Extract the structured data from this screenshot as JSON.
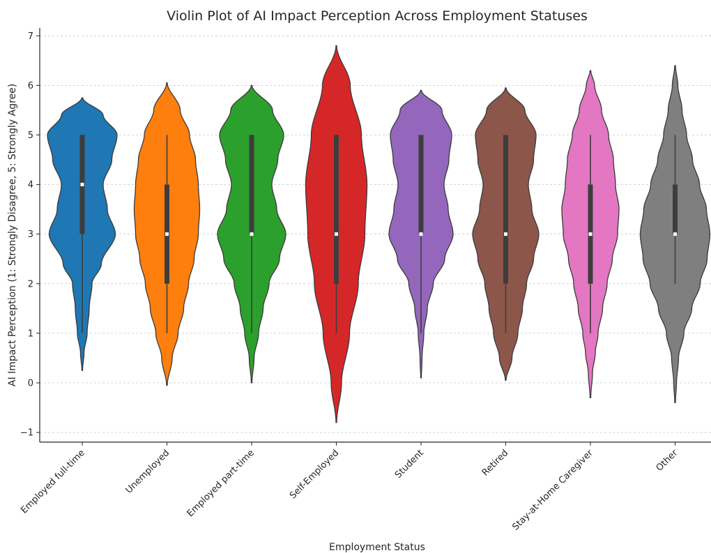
{
  "chart_data": {
    "type": "violin",
    "title": "Violin Plot of AI Impact Perception Across Employment Statuses",
    "xlabel": "Employment Status",
    "ylabel": "AI Impact Perception (1: Strongly Disagree, 5: Strongly Agree)",
    "ylim": [
      -1.2,
      7.15
    ],
    "yticks": [
      "−1",
      "0",
      "1",
      "2",
      "3",
      "4",
      "5",
      "6",
      "7"
    ],
    "grid": true,
    "categories": [
      "Employed full-time",
      "Unemployed",
      "Employed part-time",
      "Self-Employed",
      "Student",
      "Retired",
      "Stay-at-Home Caregiver",
      "Other"
    ],
    "series": [
      {
        "category": "Employed full-time",
        "color": "#1f77b4",
        "density_range": [
          0.25,
          5.75
        ],
        "density": [
          [
            0.25,
            0.01
          ],
          [
            0.6,
            0.05
          ],
          [
            1.0,
            0.14
          ],
          [
            1.5,
            0.2
          ],
          [
            2.0,
            0.28
          ],
          [
            2.4,
            0.55
          ],
          [
            3.0,
            0.95
          ],
          [
            3.5,
            0.72
          ],
          [
            4.0,
            0.6
          ],
          [
            4.5,
            0.85
          ],
          [
            5.0,
            1.0
          ],
          [
            5.4,
            0.6
          ],
          [
            5.75,
            0.01
          ]
        ],
        "whisker": [
          1,
          5
        ],
        "q1": 3,
        "q3": 5,
        "median": 4
      },
      {
        "category": "Unemployed",
        "color": "#ff7f0e",
        "density_range": [
          -0.05,
          6.05
        ],
        "density": [
          [
            -0.05,
            0.01
          ],
          [
            0.5,
            0.15
          ],
          [
            1.0,
            0.32
          ],
          [
            1.5,
            0.48
          ],
          [
            2.0,
            0.62
          ],
          [
            2.5,
            0.78
          ],
          [
            3.0,
            0.9
          ],
          [
            3.5,
            0.94
          ],
          [
            4.0,
            0.9
          ],
          [
            4.5,
            0.82
          ],
          [
            5.0,
            0.65
          ],
          [
            5.5,
            0.38
          ],
          [
            6.05,
            0.01
          ]
        ],
        "whisker": [
          1,
          5
        ],
        "q1": 2,
        "q3": 4,
        "median": 3
      },
      {
        "category": "Employed part-time",
        "color": "#2ca02c",
        "density_range": [
          0.0,
          6.0
        ],
        "density": [
          [
            0.0,
            0.01
          ],
          [
            0.5,
            0.07
          ],
          [
            1.0,
            0.2
          ],
          [
            1.5,
            0.33
          ],
          [
            2.0,
            0.5
          ],
          [
            2.5,
            0.8
          ],
          [
            3.0,
            0.98
          ],
          [
            3.5,
            0.72
          ],
          [
            4.0,
            0.58
          ],
          [
            4.5,
            0.75
          ],
          [
            5.0,
            0.92
          ],
          [
            5.5,
            0.6
          ],
          [
            6.0,
            0.01
          ]
        ],
        "whisker": [
          1,
          5
        ],
        "q1": 3,
        "q3": 5,
        "median": 3
      },
      {
        "category": "Self-Employed",
        "color": "#d62728",
        "density_range": [
          -0.8,
          6.8
        ],
        "density": [
          [
            -0.8,
            0.01
          ],
          [
            0.0,
            0.15
          ],
          [
            1.0,
            0.38
          ],
          [
            2.0,
            0.63
          ],
          [
            3.0,
            0.82
          ],
          [
            4.0,
            0.88
          ],
          [
            5.0,
            0.72
          ],
          [
            6.0,
            0.4
          ],
          [
            6.8,
            0.01
          ]
        ],
        "whisker": [
          1,
          5
        ],
        "q1": 2,
        "q3": 5,
        "median": 3
      },
      {
        "category": "Student",
        "color": "#9467bd",
        "density_range": [
          0.1,
          5.9
        ],
        "density": [
          [
            0.1,
            0.01
          ],
          [
            0.5,
            0.03
          ],
          [
            1.0,
            0.08
          ],
          [
            1.5,
            0.18
          ],
          [
            2.0,
            0.35
          ],
          [
            2.5,
            0.68
          ],
          [
            3.0,
            0.92
          ],
          [
            3.5,
            0.78
          ],
          [
            4.0,
            0.66
          ],
          [
            4.5,
            0.8
          ],
          [
            5.0,
            0.88
          ],
          [
            5.5,
            0.6
          ],
          [
            5.9,
            0.01
          ]
        ],
        "whisker": [
          1,
          5
        ],
        "q1": 3,
        "q3": 5,
        "median": 3
      },
      {
        "category": "Retired",
        "color": "#8c564b",
        "density_range": [
          0.05,
          5.95
        ],
        "density": [
          [
            0.05,
            0.01
          ],
          [
            0.5,
            0.18
          ],
          [
            1.0,
            0.35
          ],
          [
            1.5,
            0.48
          ],
          [
            2.0,
            0.6
          ],
          [
            2.5,
            0.8
          ],
          [
            3.0,
            0.95
          ],
          [
            3.5,
            0.75
          ],
          [
            4.0,
            0.65
          ],
          [
            4.5,
            0.8
          ],
          [
            5.0,
            0.87
          ],
          [
            5.5,
            0.55
          ],
          [
            5.95,
            0.01
          ]
        ],
        "whisker": [
          1,
          5
        ],
        "q1": 2,
        "q3": 5,
        "median": 3
      },
      {
        "category": "Stay-at-Home Caregiver",
        "color": "#e377c2",
        "density_range": [
          -0.3,
          6.3
        ],
        "density": [
          [
            -0.3,
            0.01
          ],
          [
            0.2,
            0.06
          ],
          [
            0.6,
            0.14
          ],
          [
            1.0,
            0.22
          ],
          [
            1.5,
            0.35
          ],
          [
            2.0,
            0.48
          ],
          [
            2.5,
            0.63
          ],
          [
            3.0,
            0.78
          ],
          [
            3.5,
            0.82
          ],
          [
            4.0,
            0.72
          ],
          [
            4.5,
            0.66
          ],
          [
            5.0,
            0.52
          ],
          [
            5.5,
            0.32
          ],
          [
            6.0,
            0.12
          ],
          [
            6.3,
            0.01
          ]
        ],
        "whisker": [
          1,
          5
        ],
        "q1": 2,
        "q3": 4,
        "median": 3
      },
      {
        "category": "Other",
        "color": "#7f7f7f",
        "density_range": [
          -0.4,
          6.4
        ],
        "density": [
          [
            -0.4,
            0.01
          ],
          [
            0.0,
            0.04
          ],
          [
            0.5,
            0.1
          ],
          [
            1.0,
            0.25
          ],
          [
            1.5,
            0.48
          ],
          [
            2.0,
            0.72
          ],
          [
            2.5,
            0.92
          ],
          [
            3.0,
            1.0
          ],
          [
            3.5,
            0.9
          ],
          [
            4.0,
            0.7
          ],
          [
            4.5,
            0.5
          ],
          [
            5.0,
            0.33
          ],
          [
            5.5,
            0.2
          ],
          [
            6.0,
            0.08
          ],
          [
            6.4,
            0.01
          ]
        ],
        "whisker": [
          2,
          5
        ],
        "q1": 3,
        "q3": 4,
        "median": 3
      }
    ]
  }
}
